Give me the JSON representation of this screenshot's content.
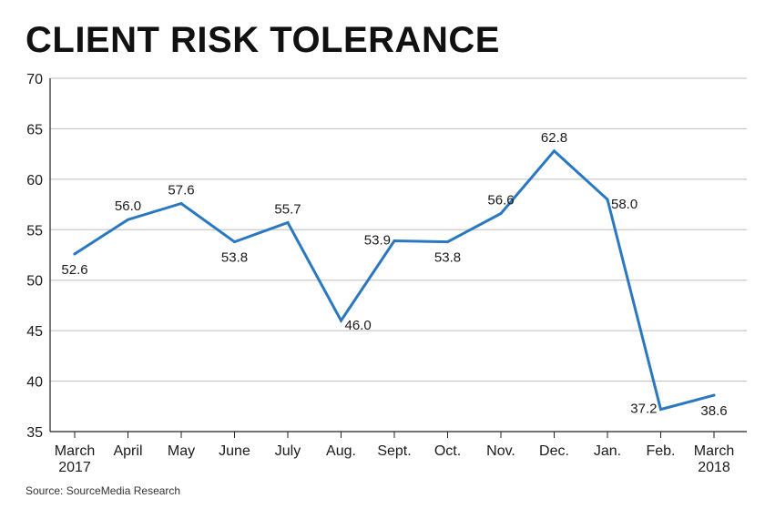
{
  "header": {
    "title": "CLIENT RISK TOLERANCE"
  },
  "footer": {
    "source": "Source: SourceMedia Research"
  },
  "colors": {
    "line": "#2a78c0",
    "grid": "#bdbdbd",
    "axis": "#222222"
  },
  "chart_data": {
    "type": "line",
    "title": "CLIENT RISK TOLERANCE",
    "xlabel": "",
    "ylabel": "",
    "categories": [
      [
        "March",
        "2017"
      ],
      [
        "April"
      ],
      [
        "May"
      ],
      [
        "June"
      ],
      [
        "July"
      ],
      [
        "Aug."
      ],
      [
        "Sept."
      ],
      [
        "Oct."
      ],
      [
        "Nov."
      ],
      [
        "Dec."
      ],
      [
        "Jan."
      ],
      [
        "Feb."
      ],
      [
        "March",
        "2018"
      ]
    ],
    "values": [
      52.6,
      56.0,
      57.6,
      53.8,
      55.7,
      46.0,
      53.9,
      53.8,
      56.6,
      62.8,
      58.0,
      37.2,
      38.6
    ],
    "value_labels": [
      "52.6",
      "56.0",
      "57.6",
      "53.8",
      "55.7",
      "46.0",
      "53.9",
      "53.8",
      "56.6",
      "62.8",
      "58.0",
      "37.2",
      "38.6"
    ],
    "label_placement": [
      "below",
      "above",
      "above",
      "below",
      "above",
      "right",
      "left",
      "below",
      "above",
      "above",
      "right",
      "left",
      "below"
    ],
    "ylim": [
      35,
      70
    ],
    "yticks": [
      35,
      40,
      45,
      50,
      55,
      60,
      65,
      70
    ],
    "grid": true,
    "legend": "none"
  }
}
